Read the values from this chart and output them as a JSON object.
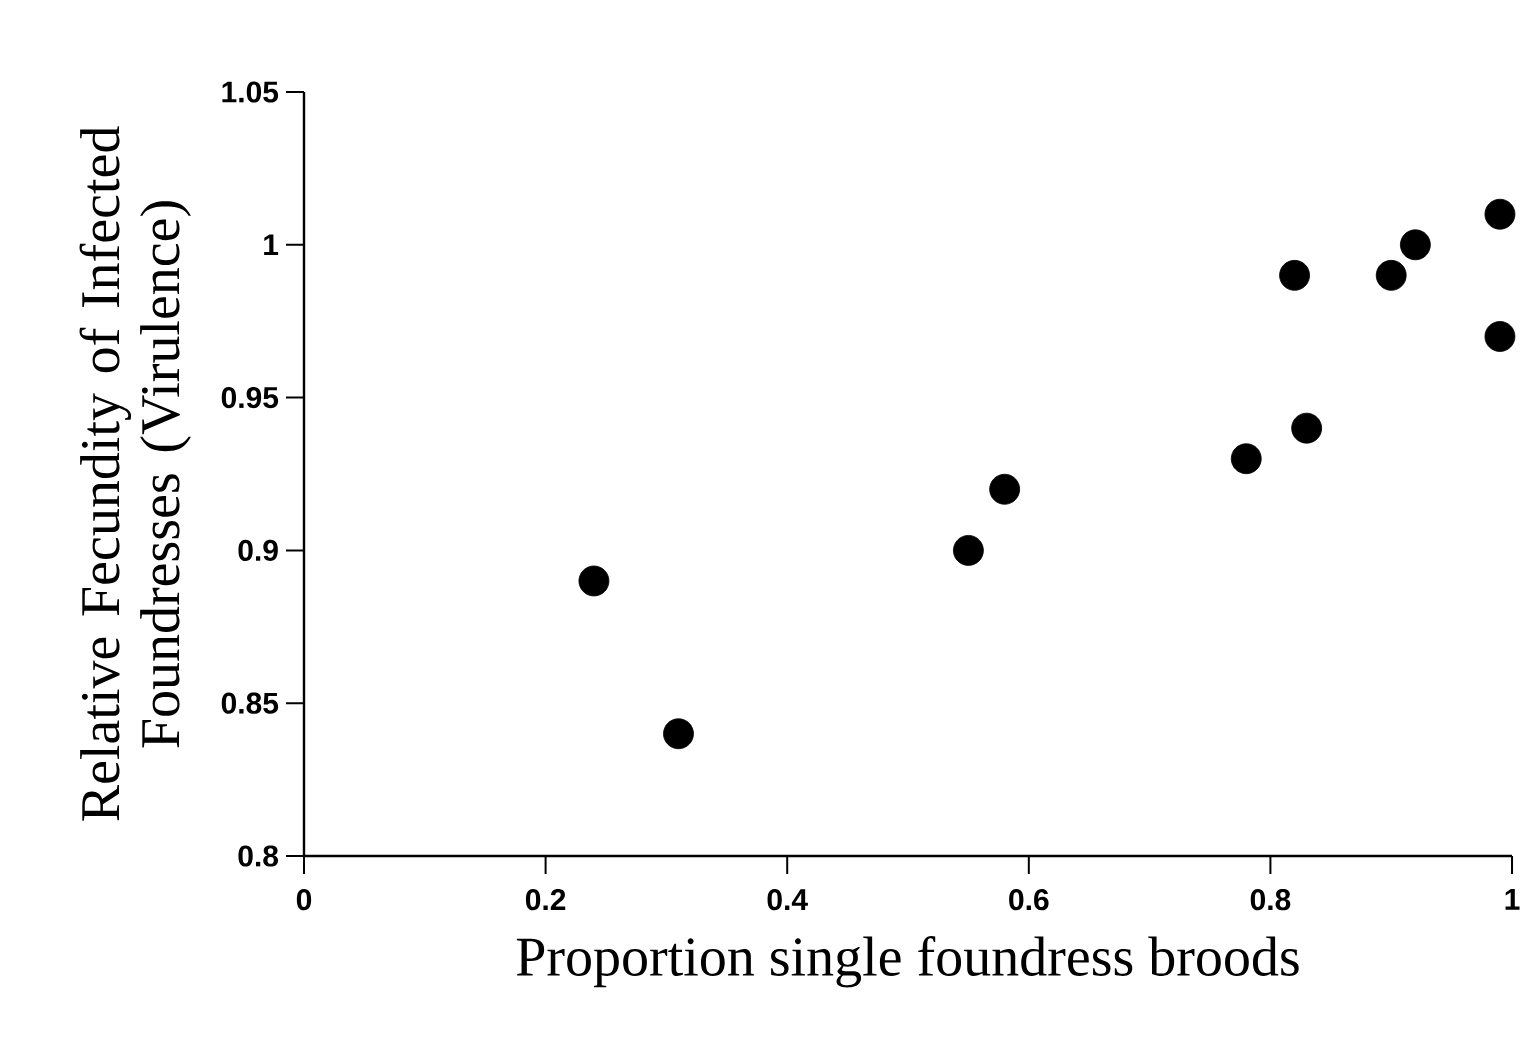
{
  "chart_data": {
    "type": "scatter",
    "xlabel": "Proportion single foundress broods",
    "ylabel": "Relative Fecundity of Infected Foundresses (Virulence)",
    "x": [
      0.24,
      0.31,
      0.55,
      0.58,
      0.78,
      0.83,
      0.82,
      0.9,
      0.92,
      0.99,
      0.99
    ],
    "series": [
      {
        "color": "#000000",
        "values": [
          0.89,
          0.84,
          0.9,
          0.92,
          0.93,
          0.94,
          0.99,
          0.99,
          1.0,
          1.01,
          0.97
        ]
      }
    ],
    "marker": "circle",
    "grid": false,
    "xlim": [
      0,
      1
    ],
    "ylim": [
      0.8,
      1.05
    ],
    "xticks": [
      0,
      0.2,
      0.4,
      0.6,
      0.8,
      1
    ],
    "yticks": [
      0.8,
      0.85,
      0.9,
      0.95,
      1,
      1.05
    ]
  }
}
